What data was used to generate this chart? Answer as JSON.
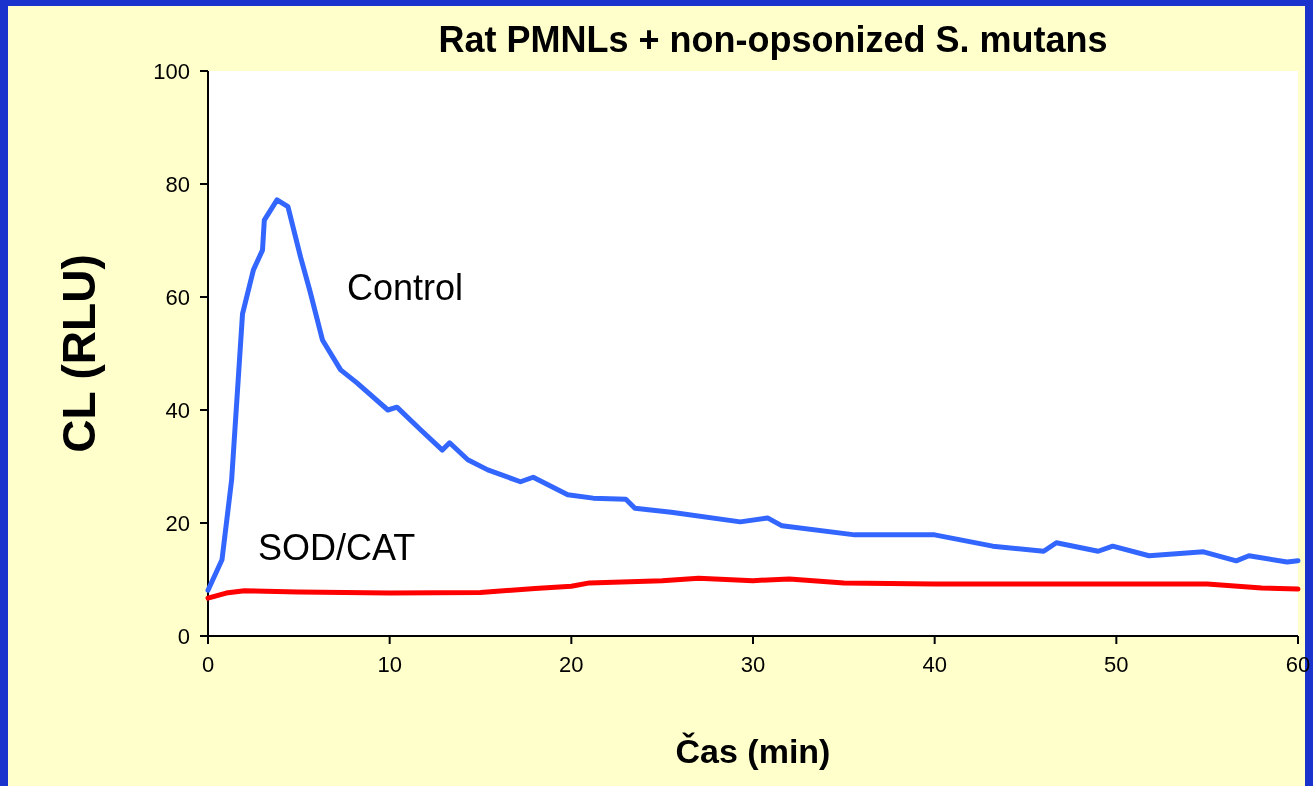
{
  "chart_data": {
    "type": "line",
    "title": "Rat PMNLs + non-opsonized S. mutans",
    "xlabel": "Čas (min)",
    "ylabel": "CL (RLU)",
    "xlim": [
      0,
      60
    ],
    "xticks": [
      0,
      10,
      20,
      30,
      40,
      50,
      60
    ],
    "ylim": [
      0,
      100
    ],
    "yticks": [
      0,
      20,
      40,
      60,
      80,
      100
    ],
    "grid": false,
    "legend": false,
    "marker": "none",
    "line_style": "solid",
    "series": [
      {
        "name": "Control",
        "color": "#3366ff",
        "x": [
          0,
          0.77,
          1.3,
          1.9,
          2.5,
          3.0,
          3.1,
          3.8,
          4.4,
          5.1,
          5.6,
          6.3,
          7.3,
          8.2,
          9.9,
          10.4,
          11.7,
          12.9,
          13.3,
          14.3,
          15.4,
          17.2,
          17.9,
          19.8,
          21.2,
          23,
          23.5,
          25.5,
          29.3,
          30.8,
          31.6,
          35.6,
          38.1,
          40,
          43.2,
          46,
          46.7,
          49,
          49.8,
          51.8,
          54.8,
          56.6,
          57.3,
          59.4,
          60
        ],
        "values": [
          8.1,
          13.5,
          27.6,
          57,
          64.8,
          68.3,
          73.6,
          77.2,
          76,
          67,
          61.2,
          52.4,
          47.1,
          44.8,
          40,
          40.5,
          36.5,
          32.9,
          34.2,
          31.2,
          29.4,
          27.3,
          28.1,
          25,
          24.4,
          24.2,
          22.6,
          21.9,
          20.2,
          20.9,
          19.5,
          17.9,
          17.9,
          17.9,
          15.9,
          15,
          16.5,
          15,
          15.9,
          14.2,
          14.9,
          13.3,
          14.2,
          13.1,
          13.3
        ]
      },
      {
        "name": "SOD/CAT",
        "color": "#ff0000",
        "x": [
          0,
          1,
          2,
          5,
          10,
          15,
          18,
          20,
          21,
          25,
          27,
          30,
          32,
          35,
          40,
          45,
          50,
          55,
          58,
          60
        ],
        "values": [
          6.7,
          7.6,
          8,
          7.8,
          7.6,
          7.7,
          8.4,
          8.8,
          9.4,
          9.8,
          10.2,
          9.8,
          10.1,
          9.4,
          9.2,
          9.2,
          9.2,
          9.2,
          8.5,
          8.3
        ]
      }
    ]
  }
}
